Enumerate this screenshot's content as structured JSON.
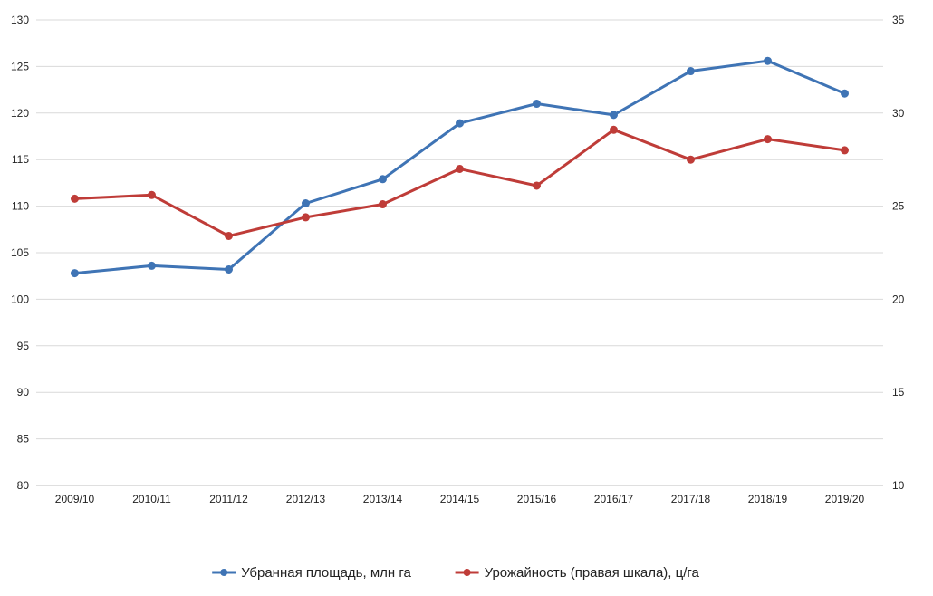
{
  "chart_data": {
    "type": "line",
    "title": "",
    "categories": [
      "2009/10",
      "2010/11",
      "2011/12",
      "2012/13",
      "2013/14",
      "2014/15",
      "2015/16",
      "2016/17",
      "2017/18",
      "2018/19",
      "2019/20"
    ],
    "y_left": {
      "range": [
        80,
        130
      ],
      "ticks": [
        "80",
        "85",
        "90",
        "95",
        "100",
        "105",
        "110",
        "115",
        "120",
        "125",
        "130"
      ]
    },
    "y_right": {
      "range": [
        10,
        35
      ],
      "ticks": [
        "10",
        "15",
        "20",
        "25",
        "30",
        "35"
      ]
    },
    "grid": true,
    "legend_placement": "bottom",
    "series": [
      {
        "name": "Убранная площадь, млн га",
        "axis": "left",
        "color": "#3f74b5",
        "values": [
          102.8,
          103.6,
          103.2,
          110.3,
          112.9,
          118.9,
          121.0,
          119.8,
          124.5,
          125.6,
          122.1
        ]
      },
      {
        "name": "Урожайность (правая шкала), ц/га",
        "axis": "right",
        "color": "#bf3c38",
        "values": [
          25.4,
          25.6,
          23.4,
          24.4,
          25.1,
          27.0,
          26.1,
          29.1,
          27.5,
          28.6,
          28.0
        ]
      }
    ]
  }
}
